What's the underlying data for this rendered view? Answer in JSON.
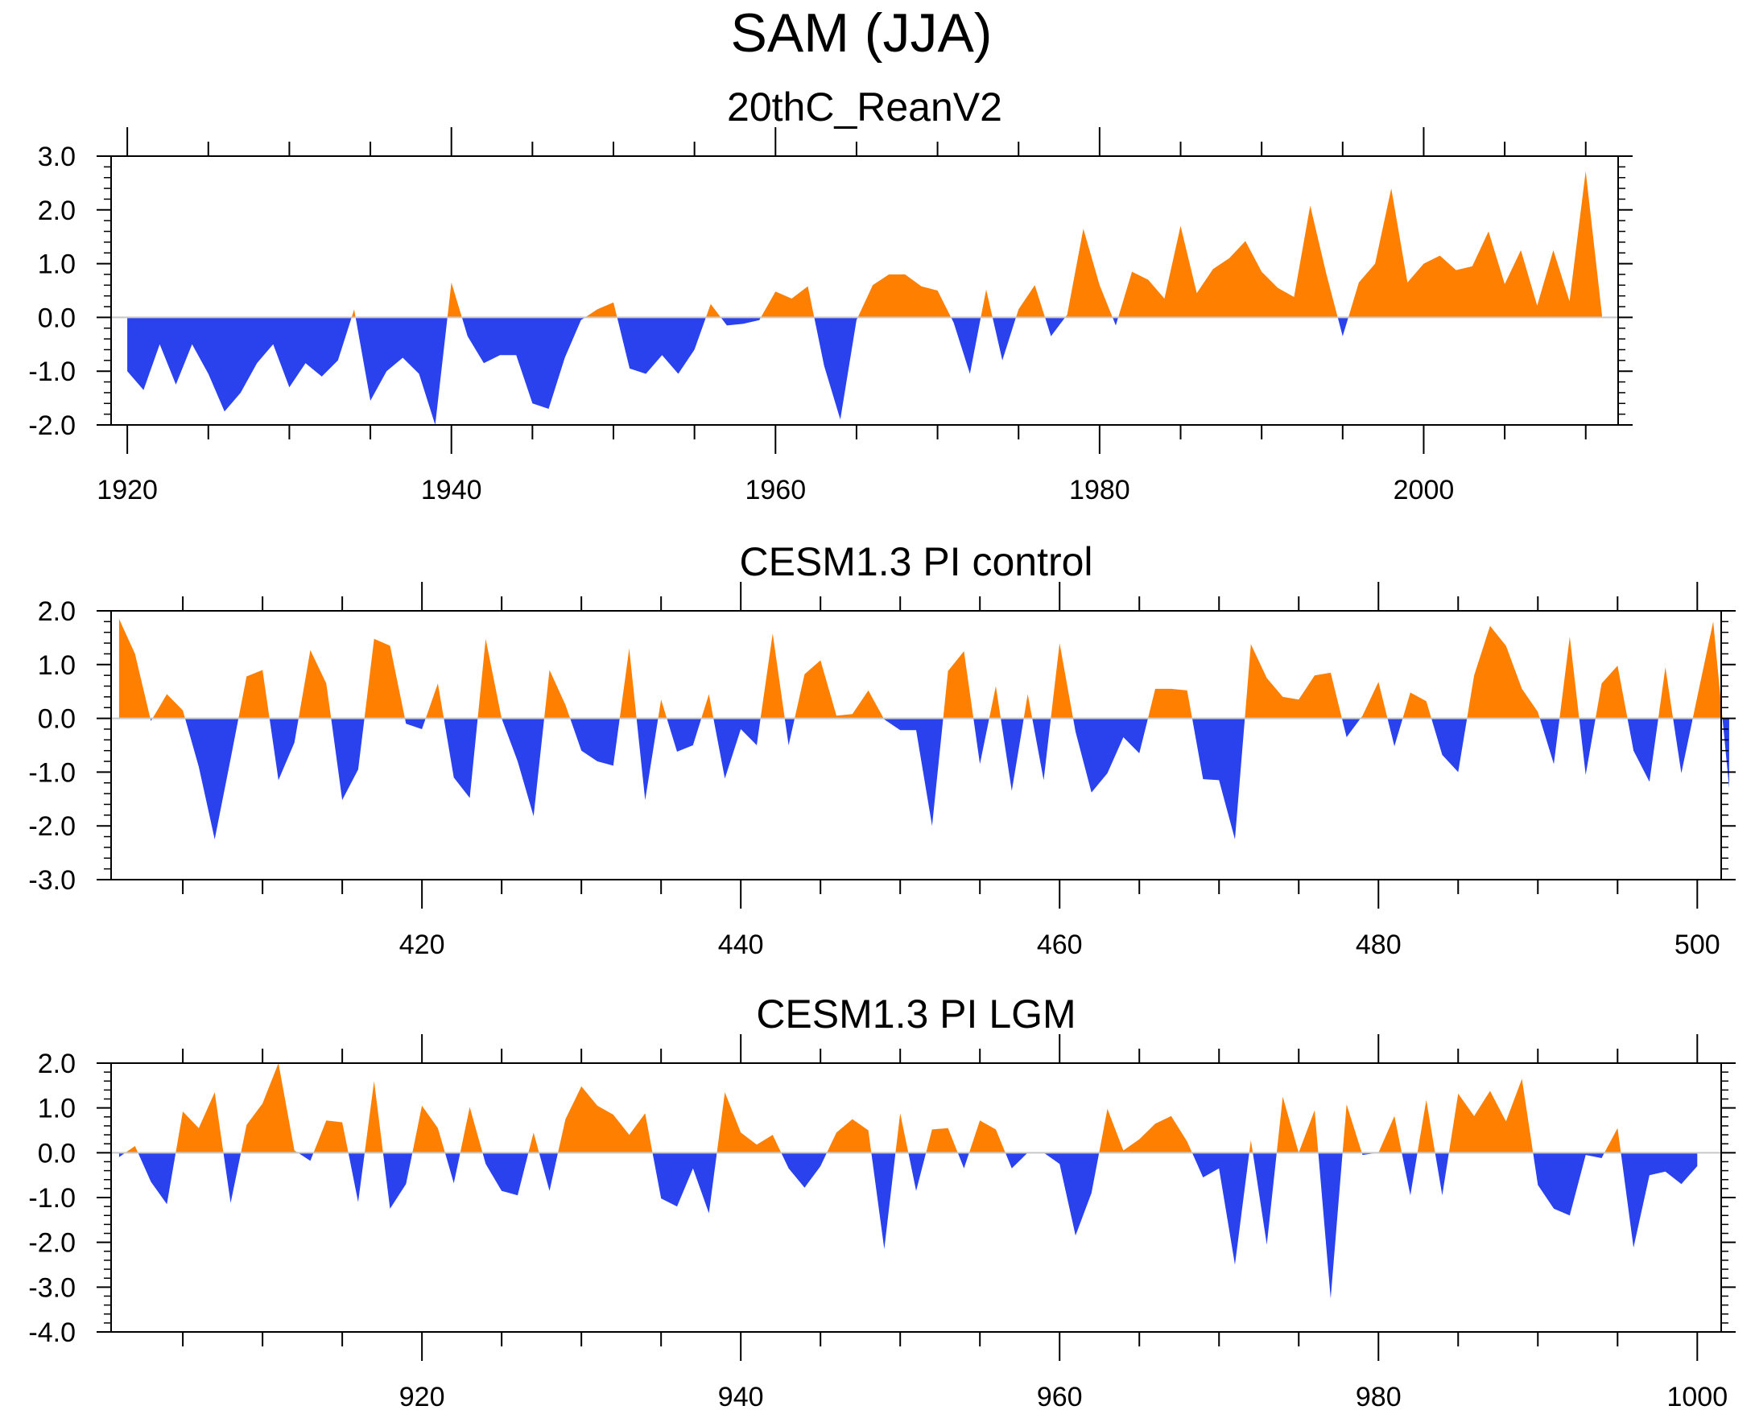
{
  "figure": {
    "title": "SAM (JJA)",
    "colors": {
      "positive": "#ff8000",
      "negative": "#2a41ee",
      "frame": "#000000",
      "zero_line": "#c8c8c8"
    }
  },
  "chart_data": [
    {
      "type": "area",
      "title": "20thC_ReanV2",
      "xlabel": "",
      "ylabel": "",
      "xlim": [
        1919,
        2012
      ],
      "ylim": [
        -2.0,
        3.0
      ],
      "xticks": [
        1920,
        1940,
        1960,
        1980,
        2000
      ],
      "xtick_labels": [
        "1920",
        "1940",
        "1960",
        "1980",
        "2000"
      ],
      "yticks": [
        -2.0,
        -1.0,
        0.0,
        1.0,
        2.0,
        3.0
      ],
      "ytick_labels": [
        "-2.0",
        "-1.0",
        "0.0",
        "1.0",
        "2.0",
        "3.0"
      ],
      "x_start": 1920,
      "values": [
        -1.0,
        -1.35,
        -0.5,
        -1.25,
        -0.5,
        -1.05,
        -1.75,
        -1.4,
        -0.85,
        -0.5,
        -1.3,
        -0.85,
        -1.1,
        -0.8,
        0.15,
        -1.55,
        -1.0,
        -0.75,
        -1.05,
        -2.0,
        0.65,
        -0.35,
        -0.85,
        -0.7,
        -0.7,
        -1.6,
        -1.7,
        -0.75,
        -0.05,
        0.15,
        0.28,
        -0.95,
        -1.05,
        -0.7,
        -1.05,
        -0.6,
        0.25,
        -0.15,
        -0.12,
        -0.05,
        0.48,
        0.35,
        0.58,
        -0.9,
        -1.9,
        -0.05,
        0.6,
        0.8,
        0.8,
        0.58,
        0.5,
        -0.1,
        -1.05,
        0.52,
        -0.8,
        0.15,
        0.6,
        -0.35,
        0.05,
        1.65,
        0.6,
        -0.15,
        0.85,
        0.7,
        0.35,
        1.7,
        0.45,
        0.9,
        1.1,
        1.42,
        0.85,
        0.55,
        0.38,
        2.08,
        0.8,
        -0.35,
        0.65,
        1.0,
        2.4,
        0.65,
        1.0,
        1.15,
        0.88,
        0.95,
        1.6,
        0.62,
        1.25,
        0.22,
        1.25,
        0.3,
        2.72,
        0.05
      ]
    },
    {
      "type": "area",
      "title": "CESM1.3 PI control",
      "xlabel": "",
      "ylabel": "",
      "xlim": [
        400.5,
        501.5
      ],
      "ylim": [
        -3.0,
        2.0
      ],
      "xticks": [
        420,
        440,
        460,
        480,
        500
      ],
      "xtick_labels": [
        "420",
        "440",
        "460",
        "480",
        "500"
      ],
      "yticks": [
        -3.0,
        -2.0,
        -1.0,
        0.0,
        1.0,
        2.0
      ],
      "ytick_labels": [
        "-3.0",
        "-2.0",
        "-1.0",
        "0.0",
        "1.0",
        "2.0"
      ],
      "x_start": 401,
      "values": [
        1.85,
        1.2,
        -0.05,
        0.45,
        0.15,
        -0.9,
        -2.25,
        -0.75,
        0.78,
        0.9,
        -1.15,
        -0.45,
        1.27,
        0.65,
        -1.52,
        -0.95,
        1.48,
        1.35,
        -0.1,
        -0.2,
        0.65,
        -1.1,
        -1.48,
        1.48,
        0.0,
        -0.8,
        -1.82,
        0.9,
        0.25,
        -0.6,
        -0.8,
        -0.88,
        1.3,
        -1.52,
        0.35,
        -0.62,
        -0.5,
        0.45,
        -1.12,
        -0.2,
        -0.5,
        1.58,
        -0.5,
        0.82,
        1.08,
        0.05,
        0.08,
        0.52,
        -0.02,
        -0.22,
        -0.22,
        -2.0,
        0.88,
        1.25,
        -0.85,
        0.6,
        -1.35,
        0.45,
        -1.15,
        1.4,
        -0.25,
        -1.38,
        -1.02,
        -0.35,
        -0.65,
        0.55,
        0.55,
        0.52,
        -1.13,
        -1.15,
        -2.25,
        1.38,
        0.75,
        0.4,
        0.35,
        0.8,
        0.85,
        -0.35,
        0.05,
        0.68,
        -0.52,
        0.48,
        0.32,
        -0.68,
        -1.0,
        0.8,
        1.72,
        1.35,
        0.55,
        0.12,
        -0.85,
        1.52,
        -1.05,
        0.65,
        0.98,
        -0.6,
        -1.18,
        0.95,
        -1.02,
        0.4,
        1.8,
        -1.3
      ]
    },
    {
      "type": "area",
      "title": "CESM1.3 PI LGM",
      "xlabel": "",
      "ylabel": "",
      "xlim": [
        900.5,
        1001.5
      ],
      "ylim": [
        -4.0,
        2.0
      ],
      "xticks": [
        920,
        940,
        960,
        980,
        1000
      ],
      "xtick_labels": [
        "920",
        "940",
        "960",
        "980",
        "1000"
      ],
      "yticks": [
        -4.0,
        -3.0,
        -2.0,
        -1.0,
        0.0,
        1.0,
        2.0
      ],
      "ytick_labels": [
        "-4.0",
        "-3.0",
        "-2.0",
        "-1.0",
        "0.0",
        "1.0",
        "2.0"
      ],
      "x_start": 901,
      "values": [
        -0.1,
        0.15,
        -0.65,
        -1.15,
        0.92,
        0.55,
        1.35,
        -1.12,
        0.62,
        1.1,
        2.0,
        0.05,
        -0.18,
        0.72,
        0.68,
        -1.1,
        1.6,
        -1.25,
        -0.7,
        1.05,
        0.55,
        -0.68,
        1.02,
        -0.25,
        -0.85,
        -0.95,
        0.45,
        -0.85,
        0.75,
        1.48,
        1.05,
        0.85,
        0.4,
        0.88,
        -1.02,
        -1.2,
        -0.35,
        -1.35,
        1.35,
        0.45,
        0.18,
        0.4,
        -0.35,
        -0.78,
        -0.3,
        0.45,
        0.75,
        0.5,
        -2.15,
        0.88,
        -0.85,
        0.52,
        0.55,
        -0.35,
        0.72,
        0.52,
        -0.35,
        0.0,
        0.0,
        -0.25,
        -1.85,
        -0.9,
        0.98,
        0.05,
        0.3,
        0.65,
        0.82,
        0.25,
        -0.55,
        -0.35,
        -2.5,
        0.28,
        -2.05,
        1.25,
        0.0,
        0.95,
        -3.25,
        1.08,
        -0.05,
        0.0,
        0.82,
        -0.95,
        1.18,
        -0.95,
        1.32,
        0.82,
        1.38,
        0.7,
        1.65,
        -0.72,
        -1.25,
        -1.4,
        -0.05,
        -0.12,
        0.55,
        -2.12,
        -0.5,
        -0.42,
        -0.7,
        -0.3
      ]
    }
  ]
}
